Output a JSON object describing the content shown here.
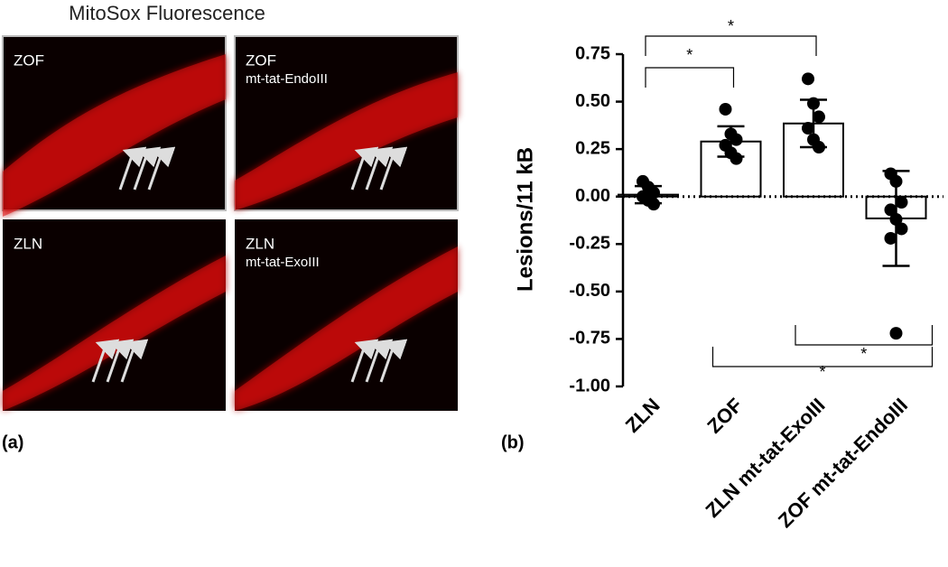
{
  "panel_a": {
    "title": "MitoSox Fluorescence",
    "label": "(a)",
    "images": [
      {
        "lines": [
          "ZOF"
        ]
      },
      {
        "lines": [
          "ZOF",
          "mt-tat-EndoIII"
        ]
      },
      {
        "lines": [
          "ZLN"
        ]
      },
      {
        "lines": [
          "ZLN",
          "mt-tat-ExoIII"
        ]
      }
    ]
  },
  "chart_data": {
    "type": "bar",
    "panel_label": "(b)",
    "y_label": "Lesions/11 kB",
    "categories": [
      "ZLN",
      "ZOF",
      "ZLN mt-tat-ExoIII",
      "ZOF mt-tat-EndoIII"
    ],
    "values": [
      0.01,
      0.29,
      0.385,
      -0.115
    ],
    "errors": [
      0.045,
      0.08,
      0.125,
      0.25
    ],
    "points": [
      [
        0.08,
        0.05,
        0.02,
        0.0,
        -0.02,
        -0.04
      ],
      [
        0.46,
        0.33,
        0.3,
        0.27,
        0.23,
        0.2
      ],
      [
        0.62,
        0.49,
        0.42,
        0.36,
        0.3,
        0.26
      ],
      [
        0.12,
        0.08,
        -0.03,
        -0.07,
        -0.12,
        -0.17,
        -0.22,
        -0.72
      ]
    ],
    "color": "#ffffff",
    "ylim": [
      -1,
      0.75
    ],
    "yticks": [
      {
        "value": -1,
        "label": "-1.00"
      },
      -0.75,
      {
        "value": -0.5,
        "label": "-0.50"
      },
      -0.25,
      {
        "value": 0,
        "label": "0.00"
      },
      0.25,
      {
        "value": 0.5,
        "label": "0.50"
      },
      0.75
    ],
    "annotations": [
      {
        "text": "*",
        "between": [
          "ZLN",
          "ZLN mt-tat-ExoIII"
        ]
      },
      {
        "text": "*",
        "between": [
          "ZLN",
          "ZOF"
        ]
      },
      {
        "text": "*",
        "between": [
          "ZLN mt-tat-ExoIII",
          "ZOF mt-tat-EndoIII"
        ]
      },
      {
        "text": "*",
        "between": [
          "ZOF",
          "ZOF mt-tat-EndoIII"
        ]
      }
    ]
  }
}
